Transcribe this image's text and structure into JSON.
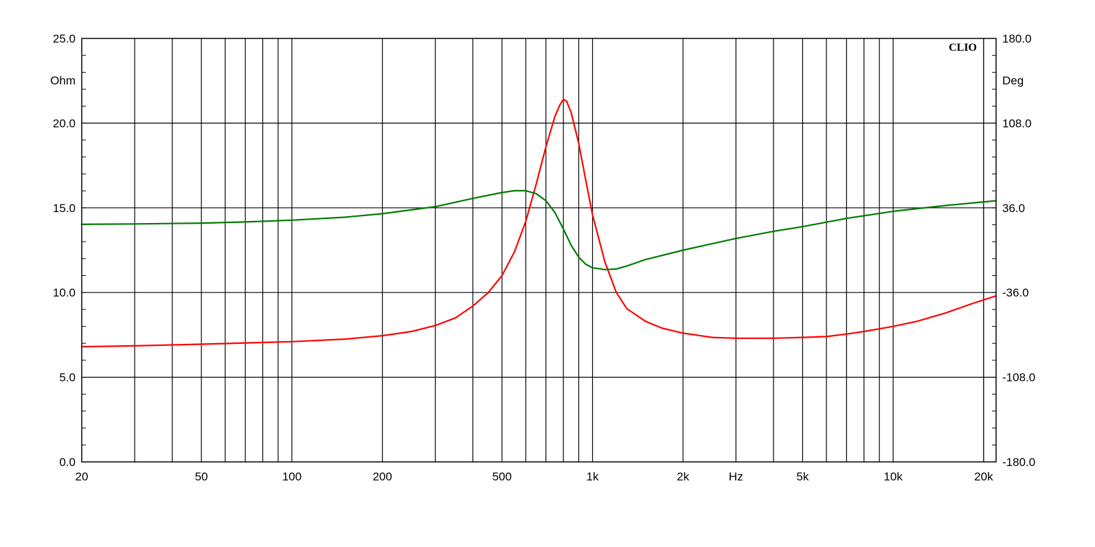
{
  "chart_data": {
    "type": "line",
    "title": "",
    "brand": "CLIO",
    "x_axis": {
      "scale": "log",
      "range": [
        20,
        22000
      ],
      "unit_label": "Hz",
      "ticks": [
        {
          "value": 20,
          "label": "20"
        },
        {
          "value": 50,
          "label": "50"
        },
        {
          "value": 100,
          "label": "100"
        },
        {
          "value": 200,
          "label": "200"
        },
        {
          "value": 500,
          "label": "500"
        },
        {
          "value": 1000,
          "label": "1k"
        },
        {
          "value": 2000,
          "label": "2k"
        },
        {
          "value": 5000,
          "label": "5k"
        },
        {
          "value": 10000,
          "label": "10k"
        },
        {
          "value": 20000,
          "label": "20k"
        }
      ],
      "unit_label_at": 3000
    },
    "y_left": {
      "unit_label": "Ohm",
      "range": [
        0,
        25
      ],
      "ticks": [
        {
          "value": 0,
          "label": "0.0"
        },
        {
          "value": 5,
          "label": "5.0"
        },
        {
          "value": 10,
          "label": "10.0"
        },
        {
          "value": 15,
          "label": "15.0"
        },
        {
          "value": 20,
          "label": "20.0"
        },
        {
          "value": 25,
          "label": "25.0"
        }
      ]
    },
    "y_right": {
      "unit_label": "Deg",
      "range": [
        -180,
        180
      ],
      "ticks": [
        {
          "value": -180,
          "label": "-180.0"
        },
        {
          "value": -108,
          "label": "-108.0"
        },
        {
          "value": -36,
          "label": "-36.0"
        },
        {
          "value": 36,
          "label": "36.0"
        },
        {
          "value": 108,
          "label": "108.0"
        },
        {
          "value": 180,
          "label": "180.0"
        }
      ]
    },
    "grid": true,
    "colors": {
      "impedance": "#ff0000",
      "phase": "#007a00",
      "grid": "#000000"
    },
    "series": [
      {
        "axis": "left",
        "color": "#ff0000",
        "points": [
          [
            20,
            6.8
          ],
          [
            30,
            6.85
          ],
          [
            50,
            6.95
          ],
          [
            80,
            7.05
          ],
          [
            100,
            7.1
          ],
          [
            150,
            7.25
          ],
          [
            200,
            7.45
          ],
          [
            250,
            7.7
          ],
          [
            300,
            8.05
          ],
          [
            350,
            8.5
          ],
          [
            400,
            9.2
          ],
          [
            450,
            10.0
          ],
          [
            500,
            11.0
          ],
          [
            550,
            12.4
          ],
          [
            600,
            14.2
          ],
          [
            650,
            16.4
          ],
          [
            700,
            18.6
          ],
          [
            750,
            20.4
          ],
          [
            780,
            21.1
          ],
          [
            800,
            21.4
          ],
          [
            820,
            21.3
          ],
          [
            850,
            20.6
          ],
          [
            900,
            18.8
          ],
          [
            950,
            16.6
          ],
          [
            1000,
            14.6
          ],
          [
            1100,
            11.8
          ],
          [
            1200,
            10.0
          ],
          [
            1300,
            9.05
          ],
          [
            1500,
            8.3
          ],
          [
            1700,
            7.9
          ],
          [
            2000,
            7.6
          ],
          [
            2500,
            7.35
          ],
          [
            3000,
            7.3
          ],
          [
            4000,
            7.3
          ],
          [
            5000,
            7.35
          ],
          [
            6000,
            7.4
          ],
          [
            7000,
            7.55
          ],
          [
            8000,
            7.7
          ],
          [
            10000,
            8.0
          ],
          [
            12000,
            8.3
          ],
          [
            15000,
            8.8
          ],
          [
            18000,
            9.3
          ],
          [
            22000,
            9.8
          ]
        ]
      },
      {
        "axis": "right",
        "color": "#007a00",
        "points": [
          [
            20,
            22
          ],
          [
            30,
            22.3
          ],
          [
            50,
            23
          ],
          [
            70,
            24
          ],
          [
            100,
            25.5
          ],
          [
            150,
            28
          ],
          [
            200,
            31
          ],
          [
            300,
            37
          ],
          [
            400,
            44
          ],
          [
            500,
            49
          ],
          [
            550,
            50.5
          ],
          [
            600,
            50.5
          ],
          [
            650,
            48
          ],
          [
            700,
            42
          ],
          [
            750,
            32
          ],
          [
            800,
            18
          ],
          [
            850,
            4
          ],
          [
            900,
            -6
          ],
          [
            950,
            -12
          ],
          [
            1000,
            -15
          ],
          [
            1100,
            -16.5
          ],
          [
            1200,
            -16
          ],
          [
            1300,
            -13.5
          ],
          [
            1500,
            -8
          ],
          [
            2000,
            0
          ],
          [
            3000,
            10
          ],
          [
            4000,
            16
          ],
          [
            5000,
            20
          ],
          [
            7000,
            27
          ],
          [
            10000,
            33
          ],
          [
            15000,
            38
          ],
          [
            22000,
            42
          ]
        ]
      }
    ]
  }
}
